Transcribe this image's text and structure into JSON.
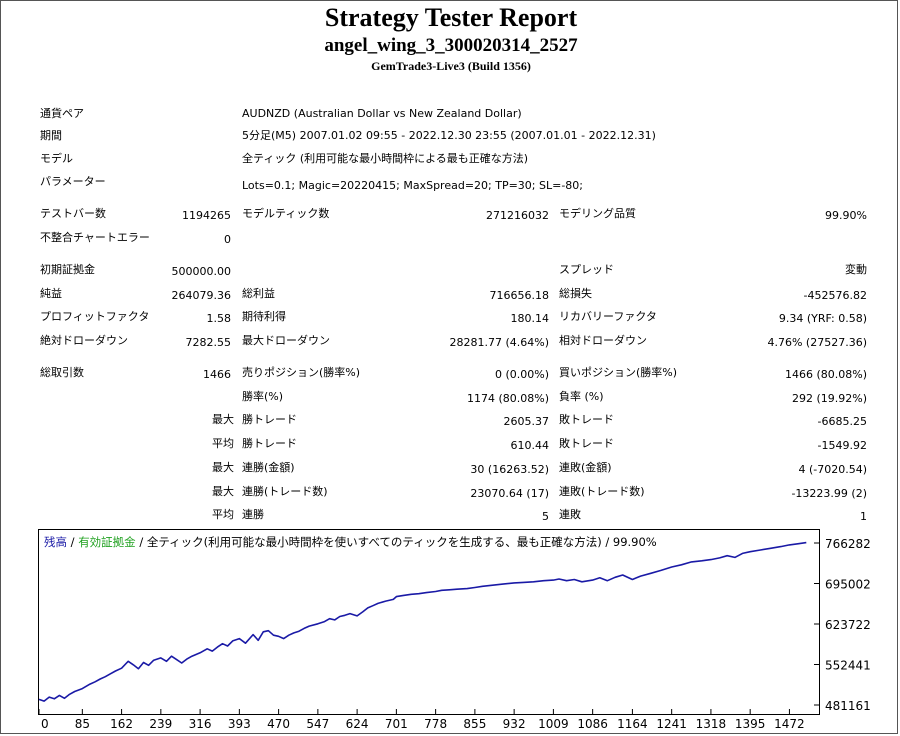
{
  "header": {
    "title": "Strategy Tester Report",
    "subtitle": "angel_wing_3_300020314_2527",
    "server": "GemTrade3-Live3 (Build 1356)"
  },
  "info": {
    "symbol_label": "通貨ペア",
    "symbol_value": "AUDNZD (Australian Dollar vs New Zealand Dollar)",
    "period_label": "期間",
    "period_value": "5分足(M5) 2007.01.02 09:55 - 2022.12.30 23:55 (2007.01.01 - 2022.12.31)",
    "model_label": "モデル",
    "model_value": "全ティック (利用可能な最小時間枠による最も正確な方法)",
    "params_label": "パラメーター",
    "params_value": "Lots=0.1; Magic=20220415; MaxSpread=20; TP=30; SL=-80;"
  },
  "stats": {
    "bars_label": "テストバー数",
    "bars_value": "1194265",
    "ticks_label": "モデルティック数",
    "ticks_value": "271216032",
    "quality_label": "モデリング品質",
    "quality_value": "99.90%",
    "mismatch_label": "不整合チャートエラー",
    "mismatch_value": "0",
    "deposit_label": "初期証拠金",
    "deposit_value": "500000.00",
    "spread_label": "スプレッド",
    "spread_value": "変動",
    "net_label": "純益",
    "net_value": "264079.36",
    "gross_profit_label": "総利益",
    "gross_profit_value": "716656.18",
    "gross_loss_label": "総損失",
    "gross_loss_value": "-452576.82",
    "pf_label": "プロフィットファクタ",
    "pf_value": "1.58",
    "expected_label": "期待利得",
    "expected_value": "180.14",
    "recovery_label": "リカバリーファクタ",
    "recovery_value": "9.34 (YRF: 0.58)",
    "abs_dd_label": "絶対ドローダウン",
    "abs_dd_value": "7282.55",
    "max_dd_label": "最大ドローダウン",
    "max_dd_value": "28281.77 (4.64%)",
    "rel_dd_label": "相対ドローダウン",
    "rel_dd_value": "4.76% (27527.36)",
    "total_trades_label": "総取引数",
    "total_trades_value": "1466",
    "short_label": "売りポジション(勝率%)",
    "short_value": "0 (0.00%)",
    "long_label": "買いポジション(勝率%)",
    "long_value": "1466 (80.08%)",
    "win_rate_label": "勝率(%)",
    "win_rate_value": "1174 (80.08%)",
    "loss_rate_label": "負率 (%)",
    "loss_rate_value": "292 (19.92%)",
    "max_word": "最大",
    "avg_word": "平均",
    "largest_win_label": "勝トレード",
    "largest_win_value": "2605.37",
    "largest_loss_label": "敗トレード",
    "largest_loss_value": "-6685.25",
    "avg_win_label": "勝トレード",
    "avg_win_value": "610.44",
    "avg_loss_label": "敗トレード",
    "avg_loss_value": "-1549.92",
    "max_consec_wins_label": "連勝(金額)",
    "max_consec_wins_value": "30 (16263.52)",
    "max_consec_losses_label": "連敗(金額)",
    "max_consec_losses_value": "4 (-7020.54)",
    "max_consec_profit_label": "連勝(トレード数)",
    "max_consec_profit_value": "23070.64 (17)",
    "max_consec_loss_label": "連敗(トレード数)",
    "max_consec_loss_value": "-13223.99 (2)",
    "avg_consec_wins_label": "連勝",
    "avg_consec_wins_value": "5",
    "avg_consec_losses_label": "連敗",
    "avg_consec_losses_value": "1"
  },
  "chart_data": {
    "type": "line",
    "legend": {
      "balance": "残高",
      "sep1": " / ",
      "equity": "有効証拠金",
      "sep2": " / ",
      "desc": "全ティック(利用可能な最小時間枠を使いすべてのティックを生成する、最も正確な方法) / 99.90%"
    },
    "colors": {
      "balance": "#1a1aa6",
      "equity": "#1ea01e"
    },
    "x_ticks": [
      "0",
      "85",
      "162",
      "239",
      "316",
      "393",
      "470",
      "547",
      "624",
      "701",
      "778",
      "855",
      "932",
      "1009",
      "1086",
      "1164",
      "1241",
      "1318",
      "1395",
      "1472"
    ],
    "y_ticks": [
      "766282",
      "695002",
      "623722",
      "552441",
      "481161"
    ],
    "ylim": [
      481161,
      766282
    ],
    "xlim": [
      0,
      1530
    ],
    "series": [
      {
        "x": [
          0,
          10,
          20,
          30,
          40,
          50,
          60,
          70,
          85,
          100,
          110,
          120,
          130,
          140,
          150,
          162,
          175,
          185,
          195,
          205,
          215,
          225,
          239,
          250,
          260,
          270,
          280,
          290,
          300,
          316,
          330,
          340,
          350,
          360,
          370,
          380,
          393,
          405,
          420,
          430,
          440,
          450,
          460,
          470,
          480,
          490,
          500,
          510,
          520,
          530,
          547,
          560,
          570,
          580,
          590,
          600,
          610,
          624,
          635,
          645,
          655,
          665,
          680,
          695,
          701,
          715,
          730,
          745,
          760,
          778,
          790,
          805,
          820,
          840,
          855,
          870,
          890,
          910,
          932,
          950,
          970,
          990,
          1009,
          1020,
          1035,
          1050,
          1065,
          1086,
          1100,
          1115,
          1130,
          1145,
          1164,
          1180,
          1200,
          1220,
          1241,
          1260,
          1280,
          1300,
          1318,
          1335,
          1350,
          1365,
          1380,
          1395,
          1415,
          1435,
          1455,
          1472,
          1490,
          1505
        ],
        "values": [
          491000,
          488000,
          495000,
          492000,
          498000,
          493000,
          500000,
          505000,
          510000,
          518000,
          522000,
          527000,
          531000,
          536000,
          541000,
          546000,
          558000,
          552000,
          545000,
          556000,
          551000,
          560000,
          564000,
          558000,
          567000,
          561000,
          555000,
          562000,
          567000,
          573000,
          580000,
          576000,
          583000,
          589000,
          585000,
          594000,
          598000,
          590000,
          605000,
          595000,
          610000,
          612000,
          604000,
          602000,
          598000,
          604000,
          608000,
          611000,
          616000,
          620000,
          624000,
          628000,
          633000,
          631000,
          637000,
          639000,
          642000,
          638000,
          645000,
          652000,
          656000,
          660000,
          664000,
          667000,
          672000,
          674000,
          676000,
          677000,
          679000,
          681000,
          683000,
          684000,
          685000,
          686000,
          688000,
          690000,
          692000,
          694000,
          696000,
          697000,
          698000,
          700000,
          701000,
          703000,
          700000,
          702000,
          698000,
          701000,
          705000,
          700000,
          706000,
          710000,
          702000,
          708000,
          713000,
          718000,
          724000,
          728000,
          733000,
          735000,
          737000,
          740000,
          744000,
          741000,
          748000,
          751000,
          754000,
          757000,
          760000,
          763000,
          765000,
          767000
        ]
      }
    ]
  }
}
